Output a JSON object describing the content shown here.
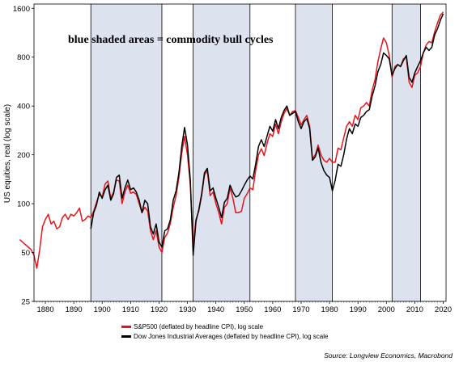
{
  "chart_data": {
    "type": "line",
    "ylabel": "US equities, real (log scale)",
    "yscale": "log",
    "ylim": [
      25,
      1700
    ],
    "xlim": [
      1876,
      2021
    ],
    "yticks": [
      "1600",
      "800",
      "400",
      "200",
      "100",
      "50",
      "25"
    ],
    "ytick_values": [
      1600,
      800,
      400,
      200,
      100,
      50,
      25
    ],
    "xticks": [
      "1880",
      "1890",
      "1900",
      "1910",
      "1920",
      "1930",
      "1940",
      "1950",
      "1960",
      "1970",
      "1980",
      "1990",
      "2000",
      "2010",
      "2020"
    ],
    "xtick_values": [
      1880,
      1890,
      1900,
      1910,
      1920,
      1930,
      1940,
      1950,
      1960,
      1970,
      1980,
      1990,
      2000,
      2010,
      2020
    ],
    "annotation": "blue shaded areas = commodity bull cycles",
    "shaded_periods": [
      [
        1896,
        1921
      ],
      [
        1932,
        1952
      ],
      [
        1968,
        1981
      ],
      [
        2002,
        2012
      ]
    ],
    "shade_color": "#dce3ef",
    "grid": false,
    "legend_position": "bottom",
    "source": "Source: Longview Economics, Macrobond",
    "series": [
      {
        "name": "S&P500 (deflated by headline CPI), log scale",
        "color": "#e8141b",
        "points": [
          [
            1871,
            60
          ],
          [
            1875,
            52
          ],
          [
            1876,
            48
          ],
          [
            1877,
            40
          ],
          [
            1878,
            52
          ],
          [
            1879,
            72
          ],
          [
            1880,
            80
          ],
          [
            1881,
            86
          ],
          [
            1882,
            75
          ],
          [
            1883,
            78
          ],
          [
            1884,
            70
          ],
          [
            1885,
            72
          ],
          [
            1886,
            82
          ],
          [
            1887,
            86
          ],
          [
            1888,
            80
          ],
          [
            1889,
            86
          ],
          [
            1890,
            84
          ],
          [
            1891,
            88
          ],
          [
            1892,
            94
          ],
          [
            1893,
            78
          ],
          [
            1894,
            80
          ],
          [
            1895,
            84
          ],
          [
            1896,
            82
          ],
          [
            1897,
            90
          ],
          [
            1898,
            102
          ],
          [
            1899,
            114
          ],
          [
            1900,
            110
          ],
          [
            1901,
            132
          ],
          [
            1902,
            138
          ],
          [
            1903,
            108
          ],
          [
            1904,
            118
          ],
          [
            1905,
            140
          ],
          [
            1906,
            138
          ],
          [
            1907,
            100
          ],
          [
            1908,
            118
          ],
          [
            1909,
            130
          ],
          [
            1910,
            116
          ],
          [
            1911,
            118
          ],
          [
            1912,
            114
          ],
          [
            1913,
            100
          ],
          [
            1914,
            88
          ],
          [
            1915,
            95
          ],
          [
            1916,
            90
          ],
          [
            1917,
            68
          ],
          [
            1918,
            60
          ],
          [
            1919,
            68
          ],
          [
            1920,
            54
          ],
          [
            1921,
            50
          ],
          [
            1922,
            62
          ],
          [
            1923,
            66
          ],
          [
            1924,
            76
          ],
          [
            1925,
            95
          ],
          [
            1926,
            112
          ],
          [
            1927,
            145
          ],
          [
            1928,
            205
          ],
          [
            1929,
            260
          ],
          [
            1930,
            200
          ],
          [
            1931,
            130
          ],
          [
            1932,
            55
          ],
          [
            1933,
            80
          ],
          [
            1934,
            90
          ],
          [
            1935,
            112
          ],
          [
            1936,
            150
          ],
          [
            1937,
            160
          ],
          [
            1938,
            112
          ],
          [
            1939,
            118
          ],
          [
            1940,
            100
          ],
          [
            1941,
            88
          ],
          [
            1942,
            75
          ],
          [
            1943,
            95
          ],
          [
            1944,
            100
          ],
          [
            1945,
            125
          ],
          [
            1946,
            108
          ],
          [
            1947,
            88
          ],
          [
            1948,
            88
          ],
          [
            1949,
            90
          ],
          [
            1950,
            108
          ],
          [
            1951,
            115
          ],
          [
            1952,
            125
          ],
          [
            1953,
            122
          ],
          [
            1954,
            160
          ],
          [
            1955,
            200
          ],
          [
            1956,
            218
          ],
          [
            1957,
            198
          ],
          [
            1958,
            235
          ],
          [
            1959,
            270
          ],
          [
            1960,
            260
          ],
          [
            1961,
            310
          ],
          [
            1962,
            270
          ],
          [
            1963,
            320
          ],
          [
            1964,
            360
          ],
          [
            1965,
            385
          ],
          [
            1966,
            350
          ],
          [
            1967,
            370
          ],
          [
            1968,
            375
          ],
          [
            1969,
            340
          ],
          [
            1970,
            305
          ],
          [
            1971,
            330
          ],
          [
            1972,
            350
          ],
          [
            1973,
            300
          ],
          [
            1974,
            190
          ],
          [
            1975,
            200
          ],
          [
            1976,
            230
          ],
          [
            1977,
            200
          ],
          [
            1978,
            185
          ],
          [
            1979,
            180
          ],
          [
            1980,
            190
          ],
          [
            1981,
            180
          ],
          [
            1982,
            180
          ],
          [
            1983,
            220
          ],
          [
            1984,
            215
          ],
          [
            1985,
            255
          ],
          [
            1986,
            300
          ],
          [
            1987,
            320
          ],
          [
            1988,
            300
          ],
          [
            1989,
            350
          ],
          [
            1990,
            330
          ],
          [
            1991,
            390
          ],
          [
            1992,
            400
          ],
          [
            1993,
            420
          ],
          [
            1994,
            400
          ],
          [
            1995,
            500
          ],
          [
            1996,
            580
          ],
          [
            1997,
            750
          ],
          [
            1998,
            900
          ],
          [
            1999,
            1050
          ],
          [
            2000,
            980
          ],
          [
            2001,
            820
          ],
          [
            2002,
            600
          ],
          [
            2003,
            700
          ],
          [
            2004,
            720
          ],
          [
            2005,
            700
          ],
          [
            2006,
            780
          ],
          [
            2007,
            800
          ],
          [
            2008,
            560
          ],
          [
            2009,
            520
          ],
          [
            2010,
            620
          ],
          [
            2011,
            640
          ],
          [
            2012,
            700
          ],
          [
            2013,
            850
          ],
          [
            2014,
            950
          ],
          [
            2015,
            1000
          ],
          [
            2016,
            980
          ],
          [
            2017,
            1150
          ],
          [
            2018,
            1300
          ],
          [
            2019,
            1450
          ],
          [
            2020,
            1520
          ]
        ]
      },
      {
        "name": "Dow Jones Industrial Averages (deflated by headline CPI), log scale",
        "color": "#000000",
        "points": [
          [
            1896,
            70
          ],
          [
            1897,
            88
          ],
          [
            1898,
            98
          ],
          [
            1899,
            118
          ],
          [
            1900,
            108
          ],
          [
            1901,
            122
          ],
          [
            1902,
            130
          ],
          [
            1903,
            105
          ],
          [
            1904,
            115
          ],
          [
            1905,
            145
          ],
          [
            1906,
            150
          ],
          [
            1907,
            108
          ],
          [
            1908,
            125
          ],
          [
            1909,
            140
          ],
          [
            1910,
            122
          ],
          [
            1911,
            125
          ],
          [
            1912,
            118
          ],
          [
            1913,
            105
          ],
          [
            1914,
            88
          ],
          [
            1915,
            105
          ],
          [
            1916,
            100
          ],
          [
            1917,
            72
          ],
          [
            1918,
            65
          ],
          [
            1919,
            75
          ],
          [
            1920,
            58
          ],
          [
            1921,
            54
          ],
          [
            1922,
            68
          ],
          [
            1923,
            70
          ],
          [
            1924,
            80
          ],
          [
            1925,
            105
          ],
          [
            1926,
            120
          ],
          [
            1927,
            155
          ],
          [
            1928,
            225
          ],
          [
            1929,
            295
          ],
          [
            1930,
            230
          ],
          [
            1931,
            140
          ],
          [
            1932,
            48
          ],
          [
            1933,
            78
          ],
          [
            1934,
            92
          ],
          [
            1935,
            115
          ],
          [
            1936,
            155
          ],
          [
            1937,
            165
          ],
          [
            1938,
            120
          ],
          [
            1939,
            125
          ],
          [
            1940,
            108
          ],
          [
            1941,
            95
          ],
          [
            1942,
            82
          ],
          [
            1943,
            102
          ],
          [
            1944,
            108
          ],
          [
            1945,
            130
          ],
          [
            1946,
            118
          ],
          [
            1947,
            110
          ],
          [
            1948,
            112
          ],
          [
            1949,
            120
          ],
          [
            1950,
            130
          ],
          [
            1951,
            140
          ],
          [
            1952,
            148
          ],
          [
            1953,
            142
          ],
          [
            1954,
            175
          ],
          [
            1955,
            225
          ],
          [
            1956,
            248
          ],
          [
            1957,
            225
          ],
          [
            1958,
            260
          ],
          [
            1959,
            300
          ],
          [
            1960,
            280
          ],
          [
            1961,
            330
          ],
          [
            1962,
            290
          ],
          [
            1963,
            340
          ],
          [
            1964,
            375
          ],
          [
            1965,
            400
          ],
          [
            1966,
            350
          ],
          [
            1967,
            360
          ],
          [
            1968,
            370
          ],
          [
            1969,
            320
          ],
          [
            1970,
            290
          ],
          [
            1971,
            320
          ],
          [
            1972,
            335
          ],
          [
            1973,
            290
          ],
          [
            1974,
            185
          ],
          [
            1975,
            195
          ],
          [
            1976,
            220
          ],
          [
            1977,
            180
          ],
          [
            1978,
            160
          ],
          [
            1979,
            150
          ],
          [
            1980,
            145
          ],
          [
            1981,
            120
          ],
          [
            1982,
            140
          ],
          [
            1983,
            175
          ],
          [
            1984,
            170
          ],
          [
            1985,
            200
          ],
          [
            1986,
            250
          ],
          [
            1987,
            290
          ],
          [
            1988,
            270
          ],
          [
            1989,
            310
          ],
          [
            1990,
            300
          ],
          [
            1991,
            340
          ],
          [
            1992,
            350
          ],
          [
            1993,
            370
          ],
          [
            1994,
            380
          ],
          [
            1995,
            460
          ],
          [
            1996,
            530
          ],
          [
            1997,
            650
          ],
          [
            1998,
            720
          ],
          [
            1999,
            850
          ],
          [
            2000,
            820
          ],
          [
            2001,
            780
          ],
          [
            2002,
            620
          ],
          [
            2003,
            680
          ],
          [
            2004,
            720
          ],
          [
            2005,
            700
          ],
          [
            2006,
            760
          ],
          [
            2007,
            820
          ],
          [
            2008,
            600
          ],
          [
            2009,
            560
          ],
          [
            2010,
            640
          ],
          [
            2011,
            700
          ],
          [
            2012,
            760
          ],
          [
            2013,
            850
          ],
          [
            2014,
            920
          ],
          [
            2015,
            880
          ],
          [
            2016,
            920
          ],
          [
            2017,
            1100
          ],
          [
            2018,
            1200
          ],
          [
            2019,
            1350
          ],
          [
            2020,
            1480
          ]
        ]
      }
    ]
  }
}
